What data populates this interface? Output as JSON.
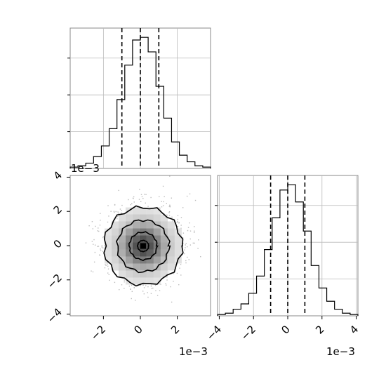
{
  "chart_data": [
    {
      "id": "hist_x",
      "type": "histogram",
      "x_range": [
        -0.0038,
        0.0038
      ],
      "bin_counts": [
        1,
        2,
        4,
        9,
        17,
        30,
        52,
        78,
        97,
        99,
        88,
        62,
        38,
        20,
        10,
        5,
        2,
        1
      ],
      "y_max": 100,
      "quantile_lines": [
        -0.001,
        0.0,
        0.001
      ],
      "y_ticks_visible_without_labels": 3,
      "grid": true
    },
    {
      "id": "density_2d",
      "type": "scatter",
      "description_of_marks": "2D density: scattered points, shaded greyscale bins, contour levels",
      "x_range": [
        -0.0038,
        0.0038
      ],
      "y_range": [
        -0.0041,
        0.0041
      ],
      "x_ticks": [
        "−2",
        "0",
        "2"
      ],
      "y_ticks": [
        "−4",
        "−2",
        "0",
        "2",
        "4"
      ],
      "x_offset_label": "1e−3",
      "y_offset_label": "1e−3",
      "center": [
        0.00015,
        -2e-05
      ],
      "contour_radii_data_units": [
        0.0021,
        0.0014,
        0.00075,
        0.0003
      ]
    },
    {
      "id": "hist_y",
      "type": "histogram",
      "x_range": [
        -0.0041,
        0.0041
      ],
      "bin_counts": [
        1,
        2,
        5,
        9,
        17,
        30,
        50,
        74,
        95,
        99,
        86,
        64,
        38,
        21,
        11,
        5,
        2,
        1
      ],
      "y_max": 100,
      "quantile_lines": [
        -0.001,
        0.0,
        0.001
      ],
      "x_ticks": [
        "−4",
        "−2",
        "0",
        "2",
        "4"
      ],
      "x_offset_label": "1e−3",
      "grid": true
    }
  ]
}
